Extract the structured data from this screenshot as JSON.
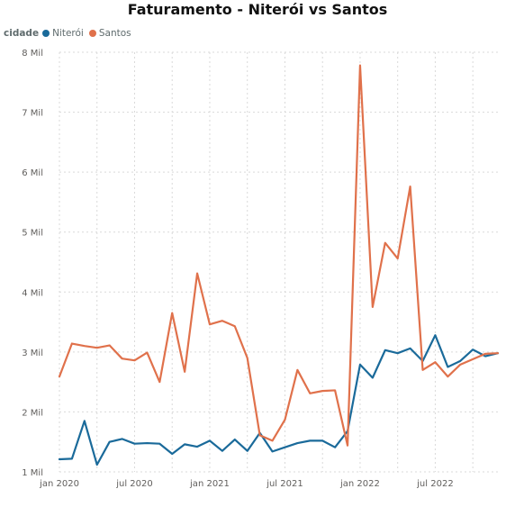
{
  "chart_data": {
    "type": "line",
    "title": "Faturamento - Niterói vs Santos",
    "legend": {
      "title": "cidade",
      "position": "top-left"
    },
    "xlabel": "",
    "ylabel": "",
    "y_ticks": [
      "1 Mil",
      "2 Mil",
      "3 Mil",
      "4 Mil",
      "5 Mil",
      "6 Mil",
      "7 Mil",
      "8 Mil"
    ],
    "ylim": [
      1000,
      8000
    ],
    "x_ticks": [
      "jan 2020",
      "jul 2020",
      "jan 2021",
      "jul 2021",
      "jan 2022",
      "jul 2022"
    ],
    "x": [
      "2020-01",
      "2020-02",
      "2020-03",
      "2020-04",
      "2020-05",
      "2020-06",
      "2020-07",
      "2020-08",
      "2020-09",
      "2020-10",
      "2020-11",
      "2020-12",
      "2021-01",
      "2021-02",
      "2021-03",
      "2021-04",
      "2021-05",
      "2021-06",
      "2021-07",
      "2021-08",
      "2021-09",
      "2021-10",
      "2021-11",
      "2021-12",
      "2022-01",
      "2022-02",
      "2022-03",
      "2022-04",
      "2022-05",
      "2022-06",
      "2022-07",
      "2022-08",
      "2022-09",
      "2022-10",
      "2022-11",
      "2022-12"
    ],
    "grid": true,
    "series": [
      {
        "name": "Niterói",
        "color": "#1a6a9a",
        "values": [
          1210,
          1220,
          1850,
          1120,
          1500,
          1550,
          1470,
          1480,
          1470,
          1300,
          1460,
          1420,
          1520,
          1350,
          1540,
          1350,
          1650,
          1340,
          1410,
          1480,
          1520,
          1520,
          1410,
          1680,
          2790,
          2570,
          3030,
          2980,
          3060,
          2850,
          3280,
          2750,
          2850,
          3040,
          2930,
          2980
        ]
      },
      {
        "name": "Santos",
        "color": "#e0714b",
        "values": [
          2590,
          3140,
          3100,
          3070,
          3110,
          2890,
          2860,
          2990,
          2500,
          3650,
          2670,
          4310,
          3460,
          3520,
          3430,
          2900,
          1610,
          1520,
          1870,
          2700,
          2310,
          2350,
          2360,
          1440,
          7780,
          3750,
          4820,
          4560,
          5760,
          2700,
          2830,
          2590,
          2790,
          2880,
          2970,
          2980
        ]
      }
    ]
  }
}
